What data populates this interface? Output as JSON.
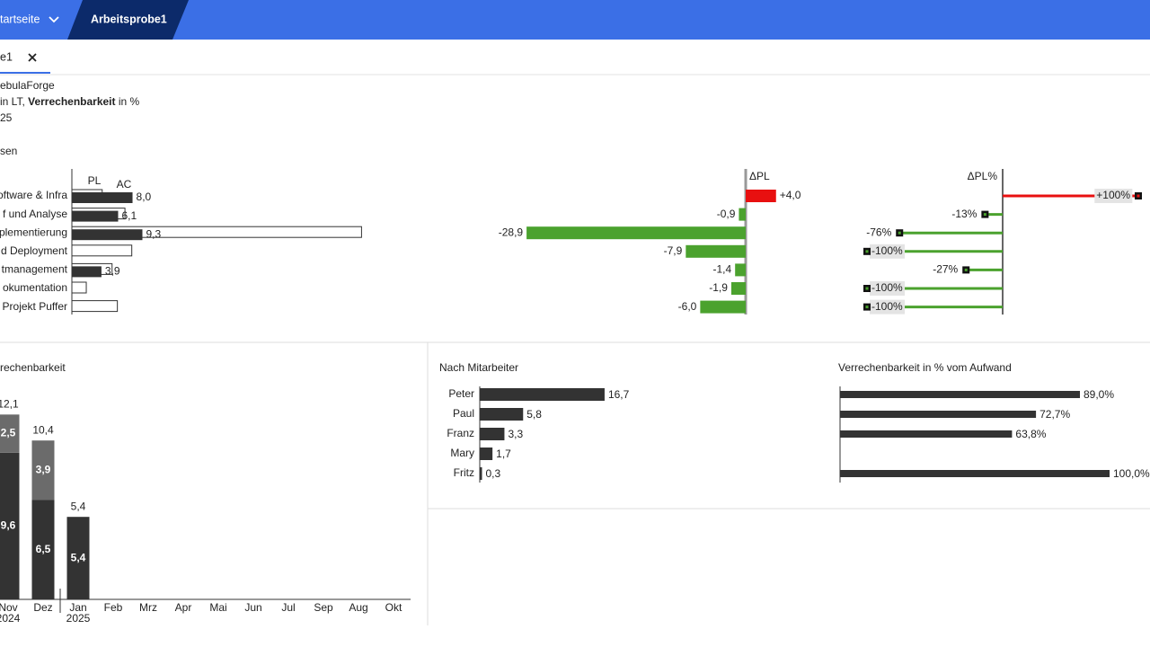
{
  "nav": {
    "items": [
      "tartseite",
      "Arbeitsprobe1"
    ]
  },
  "tab": {
    "label": "e1"
  },
  "header": {
    "line1": "ebulaForge",
    "line2": [
      "in LT, ",
      "Verrechenbarkeit",
      " in %"
    ],
    "line3": "25",
    "section": "sen"
  },
  "variance": {
    "categories": [
      "oftware & Infra",
      "f und Analyse",
      "plementierung",
      "d Deployment",
      "tmanagement",
      "okumentation",
      "Projekt Puffer"
    ],
    "pl_title": "PL",
    "ac_title": "AC",
    "pl": [
      4.0,
      7.0,
      38.2,
      7.9,
      5.3,
      1.9,
      6.0
    ],
    "ac": [
      8.0,
      6.1,
      9.3,
      0,
      3.9,
      0,
      0
    ],
    "ac_labels": [
      "8,0",
      "6,1",
      "9,3",
      null,
      "3,9",
      null,
      null
    ],
    "delta_title": "ΔPL",
    "delta": [
      4.0,
      -0.9,
      -28.9,
      -7.9,
      -1.4,
      -1.9,
      -6.0
    ],
    "delta_labels": [
      "+4,0",
      "-0,9",
      "-28,9",
      "-7,9",
      "-1,4",
      "-1,9",
      "-6,0"
    ],
    "pct_title": "ΔPL%",
    "pct": [
      100,
      -13,
      -76,
      -100,
      -27,
      -100,
      -100
    ],
    "pct_labels": [
      "+100%",
      "-13%",
      "-76%",
      "-100%",
      "-27%",
      "-100%",
      "-100%"
    ]
  },
  "monthly": {
    "title": "rechenbarkeit",
    "categories": [
      "Nov",
      "Dez",
      "Jan",
      "Feb",
      "Mrz",
      "Apr",
      "Mai",
      "Jun",
      "Jul",
      "Sep",
      "Aug",
      "Okt"
    ],
    "years": [
      "2024",
      "2025"
    ],
    "series": [
      {
        "color": "#333333",
        "values": [
          9.6,
          6.5,
          5.4,
          null,
          null,
          null,
          null,
          null,
          null,
          null,
          null,
          null
        ],
        "value_labels": [
          "9,6",
          "6,5",
          "5,4",
          null,
          null,
          null,
          null,
          null,
          null,
          null,
          null,
          null
        ]
      },
      {
        "color": "#6b6b6b",
        "values": [
          2.5,
          3.9,
          null,
          null,
          null,
          null,
          null,
          null,
          null,
          null,
          null,
          null
        ],
        "value_labels": [
          "2,5",
          "3,9",
          null,
          null,
          null,
          null,
          null,
          null,
          null,
          null,
          null,
          null
        ]
      }
    ],
    "totals": [
      12.1,
      10.4,
      5.4,
      null,
      null,
      null,
      null,
      null,
      null,
      null,
      null,
      null
    ],
    "total_labels": [
      "12,1",
      "10,4",
      "5,4",
      null,
      null,
      null,
      null,
      null,
      null,
      null,
      null,
      null
    ]
  },
  "employees": {
    "title": "Nach Mitarbeiter",
    "categories": [
      "Peter",
      "Paul",
      "Franz",
      "Mary",
      "Fritz"
    ],
    "values": [
      16.7,
      5.8,
      3.3,
      1.7,
      0.3
    ],
    "value_labels": [
      "16,7",
      "5,8",
      "3,3",
      "1,7",
      "0,3"
    ]
  },
  "utilization": {
    "title": "Verrechenbarkeit in % vom Aufwand",
    "values": [
      89.0,
      72.7,
      63.8,
      null,
      100.0
    ],
    "value_labels": [
      "89,0%",
      "72,7%",
      "63,8%",
      null,
      "100,0%"
    ]
  }
}
